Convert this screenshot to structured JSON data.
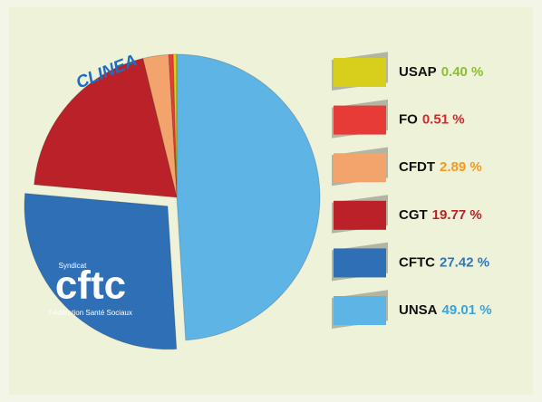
{
  "chart_data": {
    "type": "pie",
    "title": "CLINEA",
    "categories": [
      "USAP",
      "FO",
      "CFDT",
      "CGT",
      "CFTC",
      "UNSA"
    ],
    "values": [
      0.4,
      0.51,
      2.89,
      19.77,
      27.42,
      49.01
    ],
    "value_labels": [
      "0.40 %",
      "0.51 %",
      "2.89 %",
      "19.77 %",
      "27.42 %",
      "49.01 %"
    ],
    "colors": [
      "#d8cf1c",
      "#e63b36",
      "#f3a46c",
      "#bb2129",
      "#2e6fb5",
      "#5fb4e6"
    ],
    "label_colors": [
      "#8cbf2c",
      "#d7262c",
      "#f39a1f",
      "#b8232a",
      "#2a77c1",
      "#3aa4dd"
    ],
    "legend": "right"
  },
  "logo": {
    "top": "Syndicat",
    "name": "cftc",
    "bottom": "Fédération Santé Sociaux"
  }
}
